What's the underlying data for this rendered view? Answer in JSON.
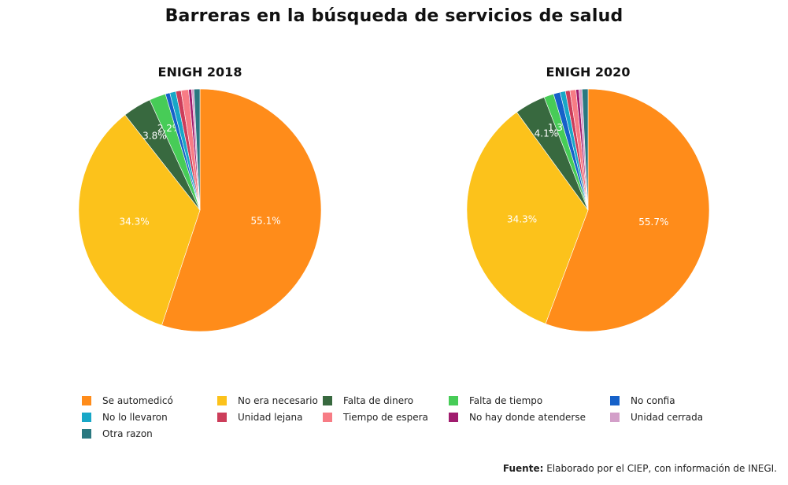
{
  "title": "Barreras en la búsqueda de servicios de salud",
  "source": {
    "label": "Fuente:",
    "text": "Elaborado por el CIEP, con información de INEGI."
  },
  "chart_data": [
    {
      "type": "pie",
      "title": "ENIGH 2018",
      "categories": [
        "Se automedicó",
        "No era necesario",
        "Falta de dinero",
        "Falta de tiempo",
        "No confia",
        "No lo llevaron",
        "Unidad lejana",
        "Tiempo de espera",
        "No hay donde atenderse",
        "Unidad cerrada",
        "Otra razon"
      ],
      "values": [
        55.1,
        34.3,
        3.8,
        2.2,
        0.6,
        0.8,
        0.7,
        1.0,
        0.4,
        0.3,
        0.8
      ],
      "data_labels": [
        "55.1%",
        "34.3%",
        "3.8%",
        "2.2%",
        "",
        "",
        "",
        "",
        "",
        "",
        ""
      ],
      "colors": [
        "#FF8C1A",
        "#FCC21B",
        "#38693F",
        "#47CC57",
        "#1661C9",
        "#18A7C7",
        "#CC3D5A",
        "#F77C85",
        "#A01C6E",
        "#D39FC9",
        "#2A7880"
      ],
      "direction": "clockwise",
      "start": "12 o'clock"
    },
    {
      "type": "pie",
      "title": "ENIGH 2020",
      "categories": [
        "Se automedicó",
        "No era necesario",
        "Falta de dinero",
        "Falta de tiempo",
        "No confia",
        "No lo llevaron",
        "Unidad lejana",
        "Tiempo de espera",
        "No hay donde atenderse",
        "Unidad cerrada",
        "Otra razon"
      ],
      "values": [
        55.7,
        34.3,
        4.1,
        1.3,
        0.9,
        0.7,
        0.6,
        0.8,
        0.4,
        0.4,
        0.8
      ],
      "data_labels": [
        "55.7%",
        "34.3%",
        "4.1%",
        "1.3%",
        "",
        "",
        "",
        "",
        "",
        "",
        ""
      ],
      "colors": [
        "#FF8C1A",
        "#FCC21B",
        "#38693F",
        "#47CC57",
        "#1661C9",
        "#18A7C7",
        "#CC3D5A",
        "#F77C85",
        "#A01C6E",
        "#D39FC9",
        "#2A7880"
      ],
      "direction": "clockwise",
      "start": "12 o'clock"
    }
  ],
  "legend": {
    "placement": "bottom",
    "items": [
      {
        "label": "Se automedicó",
        "color": "#FF8C1A"
      },
      {
        "label": "No era necesario",
        "color": "#FCC21B"
      },
      {
        "label": "Falta de dinero",
        "color": "#38693F"
      },
      {
        "label": "Falta de tiempo",
        "color": "#47CC57"
      },
      {
        "label": "No confia",
        "color": "#1661C9"
      },
      {
        "label": "No lo llevaron",
        "color": "#18A7C7"
      },
      {
        "label": "Unidad lejana",
        "color": "#CC3D5A"
      },
      {
        "label": "Tiempo de espera",
        "color": "#F77C85"
      },
      {
        "label": "No hay donde atenderse",
        "color": "#A01C6E"
      },
      {
        "label": "Unidad cerrada",
        "color": "#D39FC9"
      },
      {
        "label": "Otra razon",
        "color": "#2A7880"
      }
    ]
  }
}
